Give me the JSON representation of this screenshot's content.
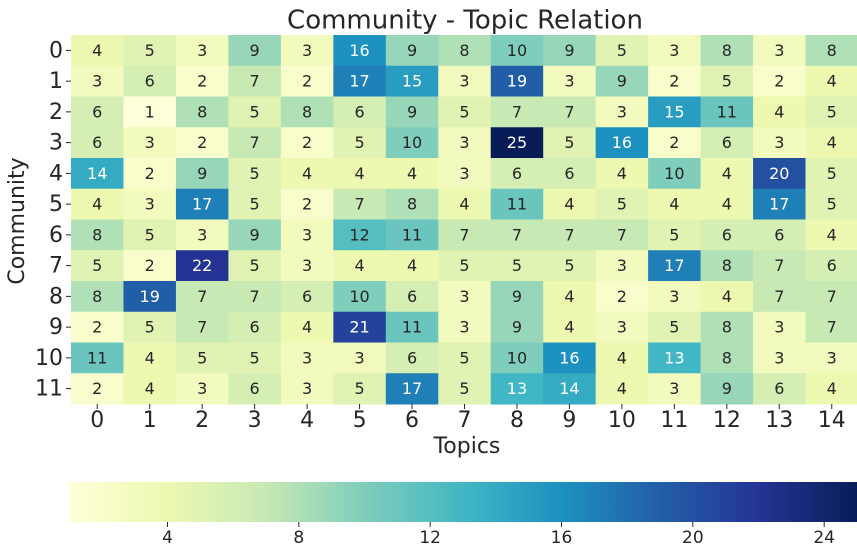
{
  "chart_data": {
    "type": "heatmap",
    "title": "Community - Topic Relation",
    "xlabel": "Topics",
    "ylabel": "Community",
    "x_categories": [
      "0",
      "1",
      "2",
      "3",
      "4",
      "5",
      "6",
      "7",
      "8",
      "9",
      "10",
      "11",
      "12",
      "13",
      "14"
    ],
    "y_categories": [
      "0",
      "1",
      "2",
      "3",
      "4",
      "5",
      "6",
      "7",
      "8",
      "9",
      "10",
      "11"
    ],
    "values": [
      [
        4,
        5,
        3,
        9,
        3,
        16,
        9,
        8,
        10,
        9,
        5,
        3,
        8,
        3,
        8
      ],
      [
        3,
        6,
        2,
        7,
        2,
        17,
        15,
        3,
        19,
        3,
        9,
        2,
        5,
        2,
        4
      ],
      [
        6,
        1,
        8,
        5,
        8,
        6,
        9,
        5,
        7,
        7,
        3,
        15,
        11,
        4,
        5
      ],
      [
        6,
        3,
        2,
        7,
        2,
        5,
        10,
        3,
        25,
        5,
        16,
        2,
        6,
        3,
        4
      ],
      [
        14,
        2,
        9,
        5,
        4,
        4,
        4,
        3,
        6,
        6,
        4,
        10,
        4,
        20,
        5
      ],
      [
        4,
        3,
        17,
        5,
        2,
        7,
        8,
        4,
        11,
        4,
        5,
        4,
        4,
        17,
        5
      ],
      [
        8,
        5,
        3,
        9,
        3,
        12,
        11,
        7,
        7,
        7,
        7,
        5,
        6,
        6,
        4
      ],
      [
        5,
        2,
        22,
        5,
        3,
        4,
        4,
        5,
        5,
        5,
        3,
        17,
        8,
        7,
        6
      ],
      [
        8,
        19,
        7,
        7,
        6,
        10,
        6,
        3,
        9,
        4,
        2,
        3,
        4,
        7,
        7
      ],
      [
        2,
        5,
        7,
        6,
        4,
        21,
        11,
        3,
        9,
        4,
        3,
        5,
        8,
        3,
        7
      ],
      [
        11,
        4,
        5,
        5,
        3,
        3,
        6,
        5,
        10,
        16,
        4,
        13,
        8,
        3,
        3
      ],
      [
        2,
        4,
        3,
        6,
        3,
        5,
        17,
        5,
        13,
        14,
        4,
        3,
        9,
        6,
        4
      ]
    ],
    "colormap": "YlGnBu",
    "clim": [
      1,
      25
    ],
    "colorbar_ticks": [
      4,
      8,
      12,
      16,
      20,
      24
    ]
  }
}
